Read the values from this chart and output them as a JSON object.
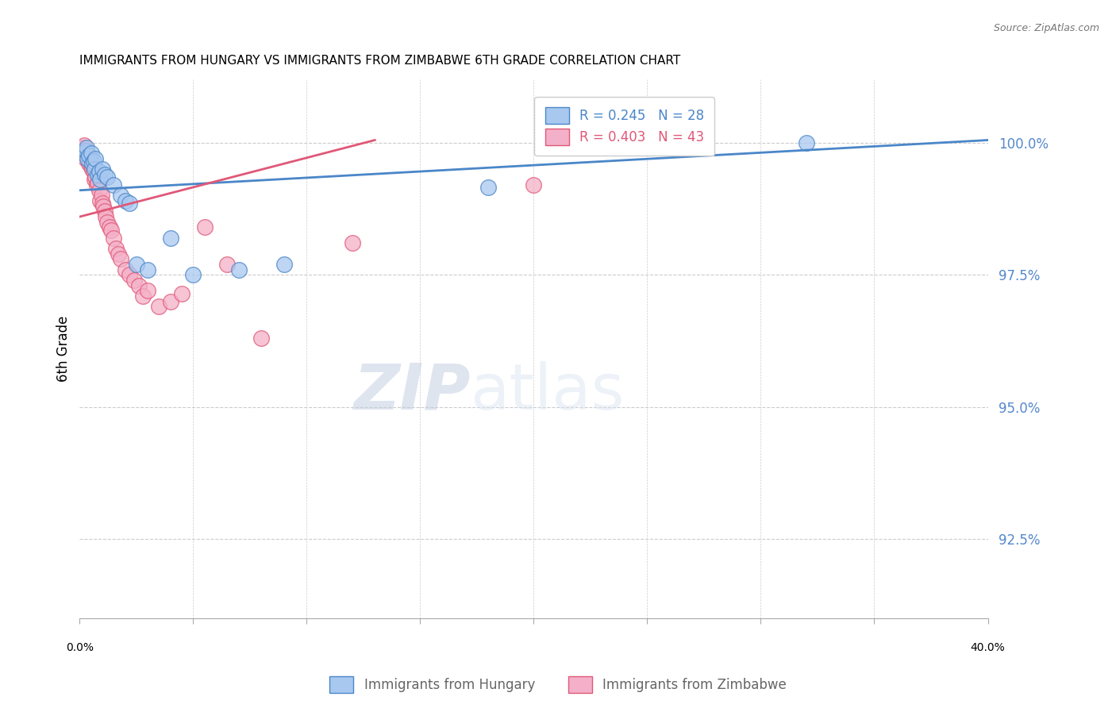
{
  "title": "IMMIGRANTS FROM HUNGARY VS IMMIGRANTS FROM ZIMBABWE 6TH GRADE CORRELATION CHART",
  "source": "Source: ZipAtlas.com",
  "ylabel": "6th Grade",
  "y_ticks": [
    92.5,
    95.0,
    97.5,
    100.0
  ],
  "y_tick_labels": [
    "92.5%",
    "95.0%",
    "97.5%",
    "100.0%"
  ],
  "x_min": 0.0,
  "x_max": 40.0,
  "y_min": 91.0,
  "y_max": 101.2,
  "hungary_color": "#a8c8f0",
  "zimbabwe_color": "#f4b0c8",
  "hungary_line_color": "#4a86c8",
  "zimbabwe_line_color": "#e05878",
  "hungary_x": [
    0.15,
    0.25,
    0.3,
    0.35,
    0.4,
    0.5,
    0.55,
    0.6,
    0.65,
    0.7,
    0.8,
    0.85,
    0.9,
    1.0,
    1.1,
    1.2,
    1.5,
    1.8,
    2.0,
    2.2,
    2.5,
    3.0,
    4.0,
    5.0,
    7.0,
    9.0,
    18.0,
    32.0
  ],
  "hungary_y": [
    99.8,
    99.85,
    99.9,
    99.7,
    99.75,
    99.8,
    99.6,
    99.65,
    99.5,
    99.7,
    99.4,
    99.45,
    99.3,
    99.5,
    99.4,
    99.35,
    99.2,
    99.0,
    98.9,
    98.85,
    97.7,
    97.6,
    98.2,
    97.5,
    97.6,
    97.7,
    99.15,
    100.0
  ],
  "zimbabwe_x": [
    0.1,
    0.15,
    0.2,
    0.25,
    0.3,
    0.35,
    0.4,
    0.45,
    0.5,
    0.55,
    0.6,
    0.65,
    0.7,
    0.75,
    0.8,
    0.85,
    0.9,
    0.95,
    1.0,
    1.05,
    1.1,
    1.15,
    1.2,
    1.3,
    1.4,
    1.5,
    1.6,
    1.7,
    1.8,
    2.0,
    2.2,
    2.4,
    2.6,
    2.8,
    3.0,
    3.5,
    4.0,
    4.5,
    5.5,
    6.5,
    8.0,
    12.0,
    20.0
  ],
  "zimbabwe_y": [
    99.85,
    99.9,
    99.95,
    99.7,
    99.75,
    99.8,
    99.6,
    99.65,
    99.55,
    99.5,
    99.45,
    99.3,
    99.35,
    99.2,
    99.25,
    99.1,
    98.9,
    99.0,
    98.85,
    98.8,
    98.7,
    98.6,
    98.5,
    98.4,
    98.35,
    98.2,
    98.0,
    97.9,
    97.8,
    97.6,
    97.5,
    97.4,
    97.3,
    97.1,
    97.2,
    96.9,
    97.0,
    97.15,
    98.4,
    97.7,
    96.3,
    98.1,
    99.2
  ],
  "hungary_line_x": [
    0.0,
    40.0
  ],
  "hungary_line_y": [
    99.1,
    100.05
  ],
  "zimbabwe_line_x": [
    0.0,
    13.0
  ],
  "zimbabwe_line_y": [
    98.6,
    100.05
  ],
  "watermark_zip": "ZIP",
  "watermark_atlas": "atlas",
  "background_color": "#ffffff",
  "grid_color": "#cccccc",
  "right_axis_color": "#5588cc",
  "title_fontsize": 11,
  "axis_label_fontsize": 10,
  "tick_fontsize": 10,
  "legend_fontsize": 12,
  "source_fontsize": 9
}
